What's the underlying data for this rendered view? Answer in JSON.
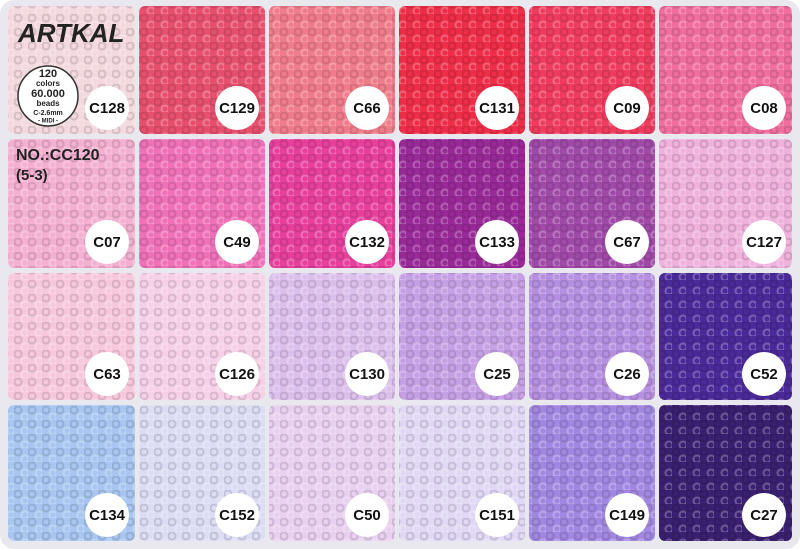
{
  "brand": "ARTKAL",
  "badge": [
    "120",
    "colors",
    "60.000",
    "beads",
    "C-2.6mm",
    "- MIDI -"
  ],
  "model": "NO.:CC120",
  "code": "(5-3)",
  "cells": [
    {
      "label": "C128",
      "color": "#f3d8de"
    },
    {
      "label": "C129",
      "color": "#e6506e"
    },
    {
      "label": "C66",
      "color": "#ef7c8a"
    },
    {
      "label": "C131",
      "color": "#ee2e48"
    },
    {
      "label": "C09",
      "color": "#ef3c5e"
    },
    {
      "label": "C08",
      "color": "#ef6e9e"
    },
    {
      "label": "C07",
      "color": "#f3b0d0"
    },
    {
      "label": "C49",
      "color": "#ef72b8"
    },
    {
      "label": "C132",
      "color": "#e6409c"
    },
    {
      "label": "C133",
      "color": "#982a98"
    },
    {
      "label": "C67",
      "color": "#a04aa8"
    },
    {
      "label": "C127",
      "color": "#efb2dc"
    },
    {
      "label": "C63",
      "color": "#f7c8dc"
    },
    {
      "label": "C126",
      "color": "#f5d0e6"
    },
    {
      "label": "C130",
      "color": "#dcc0ec"
    },
    {
      "label": "C25",
      "color": "#c6a0e4"
    },
    {
      "label": "C26",
      "color": "#b690e0"
    },
    {
      "label": "C52",
      "color": "#4a2a98"
    },
    {
      "label": "C134",
      "color": "#a8c6ef"
    },
    {
      "label": "C152",
      "color": "#dcdcf4"
    },
    {
      "label": "C50",
      "color": "#e8d0f0"
    },
    {
      "label": "C151",
      "color": "#e0d8f4"
    },
    {
      "label": "C149",
      "color": "#a088e0"
    },
    {
      "label": "C27",
      "color": "#3a2070"
    }
  ]
}
